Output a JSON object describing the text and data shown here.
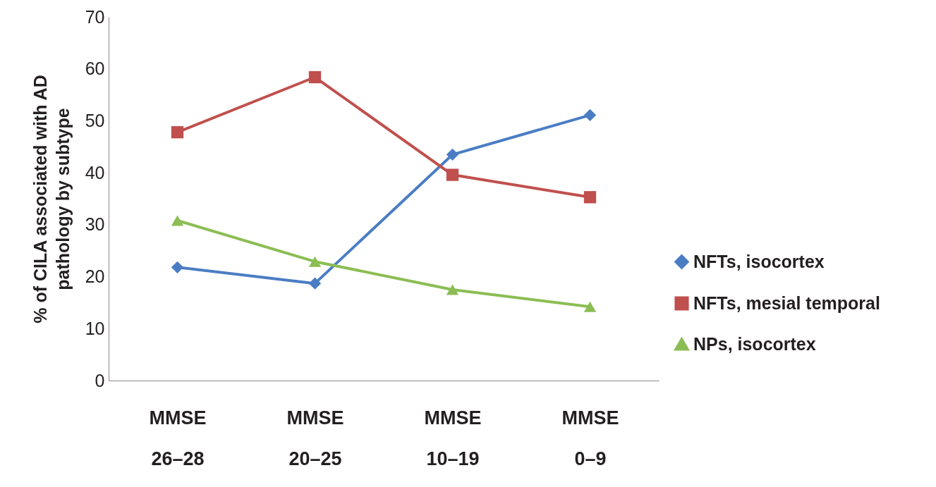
{
  "chart_data": {
    "type": "line",
    "ylabel": "% of CILA associated with AD pathology by subtype",
    "categories": [
      "MMSE\n26–28",
      "MMSE\n20–25",
      "MMSE\n10–19",
      "MMSE\n0–9"
    ],
    "series": [
      {
        "name": "NFTs, isocortex",
        "color": "#4a7dc4",
        "marker": "diamond",
        "values": [
          21.8,
          18.7,
          43.5,
          51.1
        ]
      },
      {
        "name": "NFTs, mesial temporal",
        "color": "#c0504d",
        "marker": "square",
        "values": [
          47.8,
          58.4,
          39.6,
          35.3
        ]
      },
      {
        "name": "NPs, isocortex",
        "color": "#8cbd54",
        "marker": "triangle",
        "values": [
          30.8,
          22.9,
          17.5,
          14.2
        ]
      }
    ],
    "ylim": [
      0,
      70
    ],
    "yticks": [
      0,
      10,
      20,
      30,
      40,
      50,
      60,
      70
    ],
    "grid": false,
    "legend": "right",
    "line_style": "solid"
  }
}
